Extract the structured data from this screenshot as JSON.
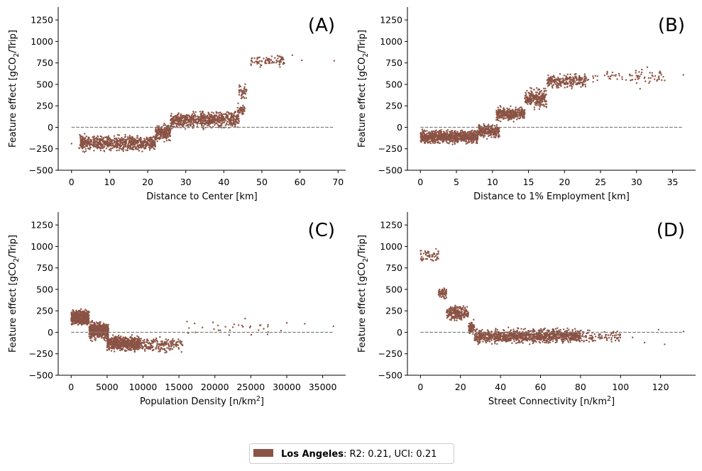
{
  "figure": {
    "colors": {
      "points": "#8b5345",
      "zero_line": "#7f7f7f",
      "axis": "#000000"
    },
    "legend": {
      "city": "Los Angeles",
      "metrics": ": R2: 0.21, UCI: 0.21"
    }
  },
  "chart_data": [
    {
      "type": "scatter",
      "panel_tag": "(A)",
      "xlabel": "Distance to Center [km]",
      "ylabel": "Feature effect [gCO",
      "ylabel_sub": "2",
      "ylabel_tail": "/Trip]",
      "xlabel_sup": "",
      "xlim": [
        -3.5,
        72
      ],
      "ylim": [
        -500,
        1400
      ],
      "xticks": [
        0,
        10,
        20,
        30,
        40,
        50,
        60,
        70
      ],
      "xtick_labels": [
        "0",
        "10",
        "20",
        "30",
        "40",
        "50",
        "60",
        "70"
      ],
      "yticks": [
        -500,
        -250,
        0,
        250,
        500,
        750,
        1000,
        1250
      ],
      "ytick_labels": [
        "−500",
        "−250",
        "0",
        "250",
        "500",
        "750",
        "1000",
        "1250"
      ],
      "zero_line": [
        0,
        69
      ],
      "seed": 11,
      "clusters": [
        {
          "x": [
            2,
            22
          ],
          "y": [
            -300,
            -70
          ],
          "n": 750
        },
        {
          "x": [
            22,
            26
          ],
          "y": [
            -180,
            60
          ],
          "n": 220
        },
        {
          "x": [
            26,
            44
          ],
          "y": [
            -40,
            210
          ],
          "n": 700
        },
        {
          "x": [
            43.5,
            45.5
          ],
          "y": [
            100,
            300
          ],
          "n": 40
        },
        {
          "x": [
            44,
            46
          ],
          "y": [
            300,
            540
          ],
          "n": 40
        },
        {
          "x": [
            47,
            56
          ],
          "y": [
            690,
            860
          ],
          "n": 90
        }
      ],
      "points": [
        [
          0,
          -190
        ],
        [
          60.5,
          780
        ],
        [
          58,
          840
        ],
        [
          69,
          775
        ],
        [
          2,
          -240
        ],
        [
          3,
          -280
        ]
      ]
    },
    {
      "type": "scatter",
      "panel_tag": "(B)",
      "xlabel": "Distance to 1% Employment [km]",
      "ylabel": "Feature effect [gCO",
      "ylabel_sub": "2",
      "ylabel_tail": "/Trip]",
      "xlabel_sup": "",
      "xlim": [
        -1.8,
        38.2
      ],
      "ylim": [
        -500,
        1400
      ],
      "xticks": [
        0,
        5,
        10,
        15,
        20,
        25,
        30,
        35
      ],
      "xtick_labels": [
        "0",
        "5",
        "10",
        "15",
        "20",
        "25",
        "30",
        "35"
      ],
      "yticks": [
        -500,
        -250,
        0,
        250,
        500,
        750,
        1000,
        1250
      ],
      "ytick_labels": [
        "−500",
        "−250",
        "0",
        "250",
        "500",
        "750",
        "1000",
        "1250"
      ],
      "zero_line": [
        0,
        36.5
      ],
      "seed": 23,
      "clusters": [
        {
          "x": [
            0,
            8
          ],
          "y": [
            -210,
            -10
          ],
          "n": 900
        },
        {
          "x": [
            8,
            11
          ],
          "y": [
            -150,
            70
          ],
          "n": 250
        },
        {
          "x": [
            10.5,
            14.5
          ],
          "y": [
            60,
            260
          ],
          "n": 320
        },
        {
          "x": [
            14.5,
            17.5
          ],
          "y": [
            200,
            480
          ],
          "n": 260
        },
        {
          "x": [
            17.5,
            23
          ],
          "y": [
            440,
            650
          ],
          "n": 230
        },
        {
          "x": [
            23,
            34
          ],
          "y": [
            460,
            700
          ],
          "n": 75
        }
      ],
      "points": [
        [
          36.5,
          610
        ],
        [
          33.5,
          550
        ],
        [
          31.5,
          700
        ],
        [
          30.5,
          450
        ]
      ]
    },
    {
      "type": "scatter",
      "panel_tag": "(C)",
      "xlabel": "Population Density [n/km",
      "ylabel": "Feature effect [gCO",
      "ylabel_sub": "2",
      "ylabel_tail": "/Trip]",
      "xlabel_sup": "2",
      "xlabel_tail": "]",
      "xlim": [
        -1800,
        38200
      ],
      "ylim": [
        -500,
        1400
      ],
      "xticks": [
        0,
        5000,
        10000,
        15000,
        20000,
        25000,
        30000,
        35000
      ],
      "xtick_labels": [
        "0",
        "5000",
        "10000",
        "15000",
        "20000",
        "25000",
        "30000",
        "35000"
      ],
      "yticks": [
        -500,
        -250,
        0,
        250,
        500,
        750,
        1000,
        1250
      ],
      "ytick_labels": [
        "−500",
        "−250",
        "0",
        "250",
        "500",
        "750",
        "1000",
        "1250"
      ],
      "zero_line": [
        0,
        36500
      ],
      "seed": 37,
      "clusters": [
        {
          "x": [
            0,
            2500
          ],
          "y": [
            60,
            280
          ],
          "n": 650
        },
        {
          "x": [
            2500,
            5200
          ],
          "y": [
            -110,
            150
          ],
          "n": 520
        },
        {
          "x": [
            5000,
            9500
          ],
          "y": [
            -240,
            -20
          ],
          "n": 620
        },
        {
          "x": [
            9500,
            15500
          ],
          "y": [
            -250,
            -40
          ],
          "n": 200
        },
        {
          "x": [
            15500,
            28000
          ],
          "y": [
            -60,
            170
          ],
          "n": 30
        }
      ],
      "points": [
        [
          30000,
          110
        ],
        [
          32500,
          100
        ],
        [
          36500,
          70
        ],
        [
          29200,
          20
        ],
        [
          24200,
          160
        ]
      ]
    },
    {
      "type": "scatter",
      "panel_tag": "(D)",
      "xlabel": "Street Connectivity [n/km",
      "ylabel": "Feature effect [gCO",
      "ylabel_sub": "2",
      "ylabel_tail": "/Trip]",
      "xlabel_sup": "2",
      "xlabel_tail": "]",
      "xlim": [
        -6.5,
        137.5
      ],
      "ylim": [
        -500,
        1400
      ],
      "xticks": [
        0,
        20,
        40,
        60,
        80,
        100,
        120
      ],
      "xtick_labels": [
        "0",
        "20",
        "40",
        "60",
        "80",
        "100",
        "120"
      ],
      "yticks": [
        -500,
        -250,
        0,
        250,
        500,
        750,
        1000,
        1250
      ],
      "ytick_labels": [
        "−500",
        "−250",
        "0",
        "250",
        "500",
        "750",
        "1000",
        "1250"
      ],
      "zero_line": [
        0,
        131.5
      ],
      "seed": 51,
      "clusters": [
        {
          "x": [
            0,
            9
          ],
          "y": [
            790,
            1000
          ],
          "n": 60
        },
        {
          "x": [
            9,
            13
          ],
          "y": [
            380,
            540
          ],
          "n": 60
        },
        {
          "x": [
            13,
            24
          ],
          "y": [
            110,
            330
          ],
          "n": 230
        },
        {
          "x": [
            24,
            27
          ],
          "y": [
            -60,
            170
          ],
          "n": 70
        },
        {
          "x": [
            27,
            80
          ],
          "y": [
            -150,
            60
          ],
          "n": 1100
        },
        {
          "x": [
            80,
            100
          ],
          "y": [
            -130,
            40
          ],
          "n": 90
        }
      ],
      "points": [
        [
          131.5,
          10
        ],
        [
          119,
          30
        ],
        [
          122,
          -140
        ],
        [
          112,
          -120
        ],
        [
          106,
          -60
        ]
      ]
    }
  ]
}
